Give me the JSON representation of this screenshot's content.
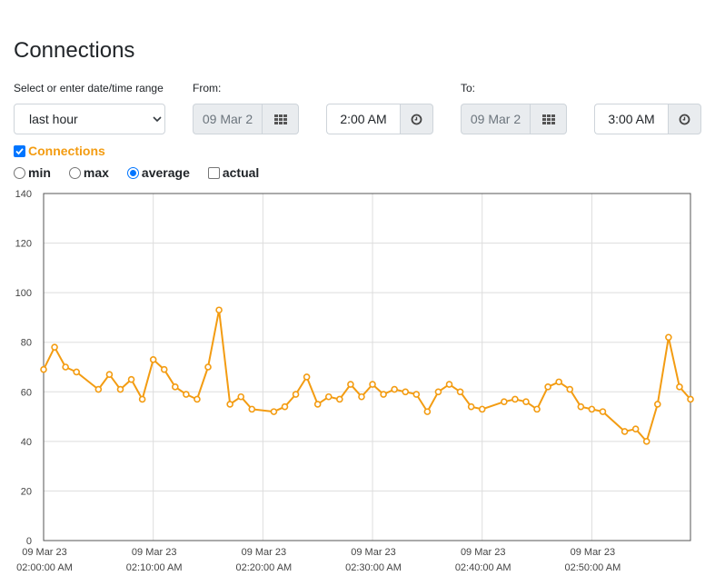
{
  "page": {
    "title": "Connections"
  },
  "range": {
    "label": "Select or enter date/time range",
    "selected": "last hour",
    "from_label": "From:",
    "to_label": "To:",
    "from_date": "09 Mar 2",
    "from_time": "2:00 AM",
    "to_date": "09 Mar 2",
    "to_time": "3:00 AM"
  },
  "icons": {
    "calendar": "calendar-grid-icon",
    "clock": "clock-icon",
    "dropdown": "chevron-down-icon"
  },
  "series_toggle": {
    "label": "Connections",
    "checked": true
  },
  "aggregation": {
    "options": [
      {
        "label": "min",
        "selected": false,
        "kind": "radio"
      },
      {
        "label": "max",
        "selected": false,
        "kind": "radio"
      },
      {
        "label": "average",
        "selected": true,
        "kind": "radio"
      },
      {
        "label": "actual",
        "selected": false,
        "kind": "checkbox"
      }
    ]
  },
  "colors": {
    "series": "#f39c12",
    "grid": "#dddddd",
    "axis": "#555555",
    "accent": "#0075ff"
  },
  "chart_data": {
    "type": "line",
    "title": "",
    "xlabel": "",
    "ylabel": "",
    "ylim": [
      0,
      140
    ],
    "yticks": [
      0,
      20,
      40,
      60,
      80,
      100,
      120,
      140
    ],
    "xlim_minutes": [
      0,
      59
    ],
    "xticks": [
      {
        "minute": 0,
        "date": "09 Mar 23",
        "time": "02:00:00 AM"
      },
      {
        "minute": 10,
        "date": "09 Mar 23",
        "time": "02:10:00 AM"
      },
      {
        "minute": 20,
        "date": "09 Mar 23",
        "time": "02:20:00 AM"
      },
      {
        "minute": 30,
        "date": "09 Mar 23",
        "time": "02:30:00 AM"
      },
      {
        "minute": 40,
        "date": "09 Mar 23",
        "time": "02:40:00 AM"
      },
      {
        "minute": 50,
        "date": "09 Mar 23",
        "time": "02:50:00 AM"
      }
    ],
    "grid": true,
    "legend": "none",
    "series": [
      {
        "name": "Connections",
        "x": [
          0,
          1,
          2,
          3,
          5,
          6,
          7,
          8,
          9,
          10,
          11,
          12,
          13,
          14,
          15,
          16,
          17,
          18,
          19,
          21,
          22,
          23,
          24,
          25,
          26,
          27,
          28,
          29,
          30,
          31,
          32,
          33,
          34,
          35,
          36,
          37,
          38,
          39,
          40,
          42,
          43,
          44,
          45,
          46,
          47,
          48,
          49,
          50,
          51,
          53,
          54,
          55,
          56,
          57,
          58,
          59
        ],
        "values": [
          69,
          78,
          70,
          68,
          61,
          67,
          61,
          65,
          57,
          73,
          69,
          62,
          59,
          57,
          70,
          93,
          55,
          58,
          53,
          52,
          54,
          59,
          66,
          55,
          58,
          57,
          63,
          58,
          63,
          59,
          61,
          60,
          59,
          52,
          60,
          63,
          60,
          54,
          53,
          56,
          57,
          56,
          53,
          62,
          64,
          61,
          54,
          53,
          52,
          44,
          45,
          40,
          55,
          82,
          62,
          57
        ]
      }
    ]
  }
}
